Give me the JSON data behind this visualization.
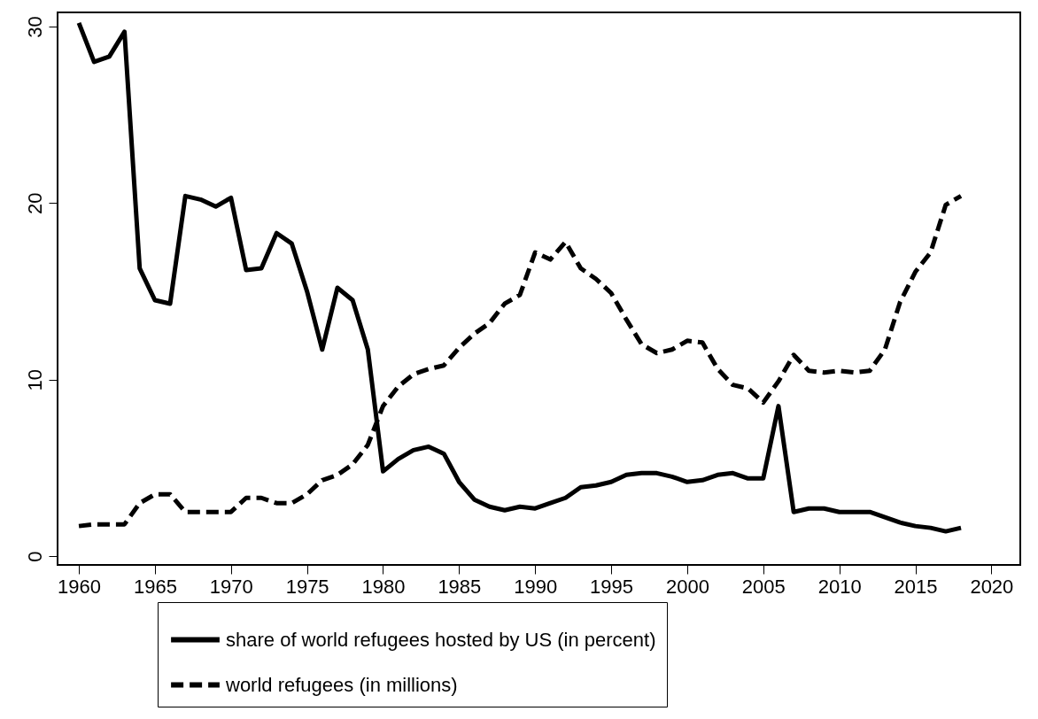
{
  "chart_data": {
    "type": "line",
    "x": [
      1960,
      1961,
      1962,
      1963,
      1964,
      1965,
      1966,
      1967,
      1968,
      1969,
      1970,
      1971,
      1972,
      1973,
      1974,
      1975,
      1976,
      1977,
      1978,
      1979,
      1980,
      1981,
      1982,
      1983,
      1984,
      1985,
      1986,
      1987,
      1988,
      1989,
      1990,
      1991,
      1992,
      1993,
      1994,
      1995,
      1996,
      1997,
      1998,
      1999,
      2000,
      2001,
      2002,
      2003,
      2004,
      2005,
      2006,
      2007,
      2008,
      2009,
      2010,
      2011,
      2012,
      2013,
      2014,
      2015,
      2016,
      2017,
      2018
    ],
    "series": [
      {
        "name": "share of world refugees hosted by US (in percent)",
        "color": "#000000",
        "line_style": "solid",
        "values": [
          30.2,
          28.0,
          28.3,
          29.7,
          16.3,
          14.5,
          14.3,
          20.4,
          20.2,
          19.8,
          20.3,
          16.2,
          16.3,
          18.3,
          17.7,
          15.0,
          11.7,
          15.2,
          14.5,
          11.7,
          4.8,
          5.5,
          6.0,
          6.2,
          5.8,
          4.2,
          3.2,
          2.8,
          2.6,
          2.8,
          2.7,
          3.0,
          3.3,
          3.9,
          4.0,
          4.2,
          4.6,
          4.7,
          4.7,
          4.5,
          4.2,
          4.3,
          4.6,
          4.7,
          4.4,
          4.4,
          8.5,
          2.5,
          2.7,
          2.7,
          2.5,
          2.5,
          2.5,
          2.2,
          1.9,
          1.7,
          1.6,
          1.4,
          1.6
        ]
      },
      {
        "name": "world refugees (in millions)",
        "color": "#000000",
        "line_style": "dashed",
        "values": [
          1.7,
          1.8,
          1.8,
          1.8,
          3.0,
          3.5,
          3.5,
          2.5,
          2.5,
          2.5,
          2.5,
          3.3,
          3.3,
          3.0,
          3.0,
          3.5,
          4.3,
          4.6,
          5.2,
          6.3,
          8.5,
          9.6,
          10.3,
          10.6,
          10.8,
          11.8,
          12.6,
          13.2,
          14.3,
          14.8,
          17.2,
          16.8,
          17.8,
          16.3,
          15.7,
          14.9,
          13.4,
          12.0,
          11.5,
          11.7,
          12.2,
          12.1,
          10.6,
          9.7,
          9.5,
          8.7,
          9.9,
          11.4,
          10.5,
          10.4,
          10.5,
          10.4,
          10.5,
          11.7,
          14.4,
          16.1,
          17.2,
          19.9,
          20.4
        ]
      }
    ],
    "xlim": [
      1958.6,
      2021.9
    ],
    "xticks": [
      1960,
      1965,
      1970,
      1975,
      1980,
      1985,
      1990,
      1995,
      2000,
      2005,
      2010,
      2015,
      2020
    ],
    "ylim": [
      -0.5,
      30.8
    ],
    "yticks": [
      0,
      10,
      20,
      30
    ],
    "grid": false,
    "legend": "bottom"
  }
}
